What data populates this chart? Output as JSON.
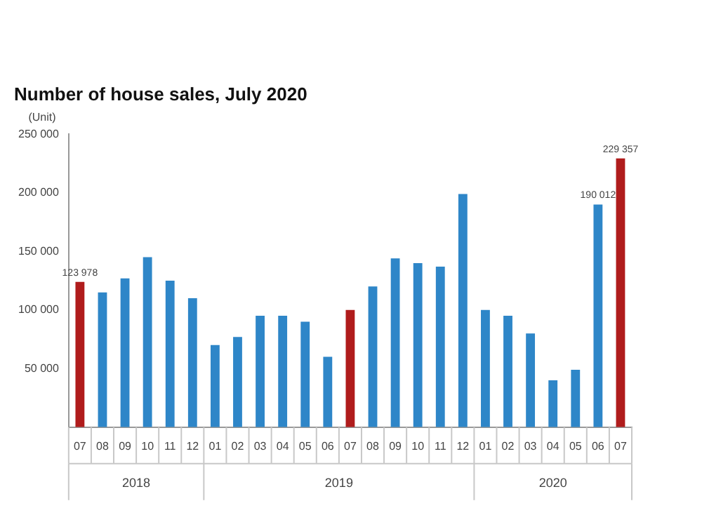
{
  "chart_data": {
    "type": "bar",
    "title": "Number of house sales, July 2020",
    "ylabel": "(Unit)",
    "categories": [
      "07",
      "08",
      "09",
      "10",
      "11",
      "12",
      "01",
      "02",
      "03",
      "04",
      "05",
      "06",
      "07",
      "08",
      "09",
      "10",
      "11",
      "12",
      "01",
      "02",
      "03",
      "04",
      "05",
      "06",
      "07"
    ],
    "values": [
      123978,
      115000,
      127000,
      145000,
      125000,
      110000,
      70000,
      77000,
      95000,
      95000,
      90000,
      60000,
      100000,
      120000,
      144000,
      140000,
      137000,
      199000,
      100000,
      95000,
      80000,
      40000,
      49000,
      190012,
      229357
    ],
    "colors": [
      "#b01c1c",
      "#2e86c8",
      "#2e86c8",
      "#2e86c8",
      "#2e86c8",
      "#2e86c8",
      "#2e86c8",
      "#2e86c8",
      "#2e86c8",
      "#2e86c8",
      "#2e86c8",
      "#2e86c8",
      "#b01c1c",
      "#2e86c8",
      "#2e86c8",
      "#2e86c8",
      "#2e86c8",
      "#2e86c8",
      "#2e86c8",
      "#2e86c8",
      "#2e86c8",
      "#2e86c8",
      "#2e86c8",
      "#2e86c8",
      "#b01c1c"
    ],
    "value_labels": [
      "123 978",
      null,
      null,
      null,
      null,
      null,
      null,
      null,
      null,
      null,
      null,
      null,
      null,
      null,
      null,
      null,
      null,
      null,
      null,
      null,
      null,
      null,
      null,
      "190 012",
      "229 357"
    ],
    "ylim": [
      0,
      250000
    ],
    "yticks": [
      {
        "value": 50000,
        "label": "50 000"
      },
      {
        "value": 100000,
        "label": "100 000"
      },
      {
        "value": 150000,
        "label": "150 000"
      },
      {
        "value": 200000,
        "label": "200 000"
      },
      {
        "value": 250000,
        "label": "250 000"
      }
    ],
    "annotations": [
      "2018",
      "2019",
      "2020"
    ],
    "grid": false,
    "legend": false
  }
}
